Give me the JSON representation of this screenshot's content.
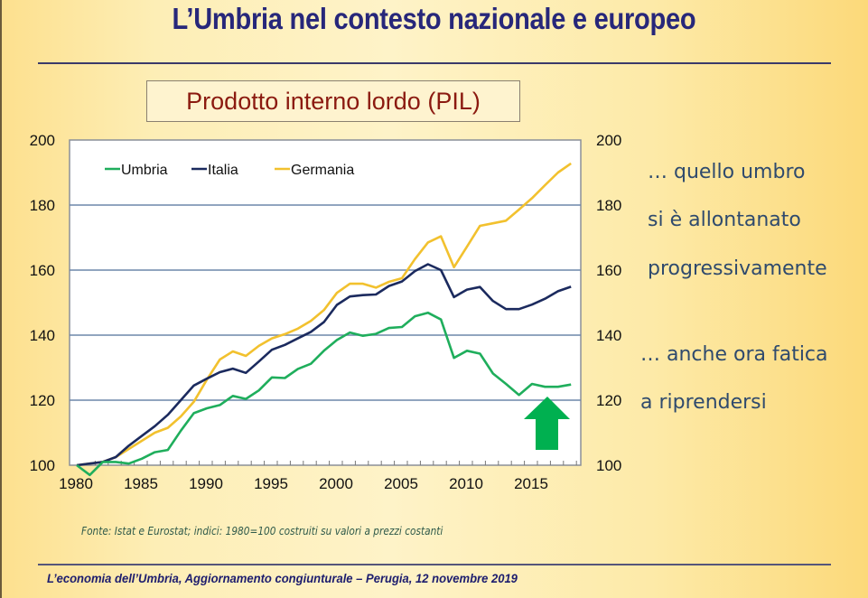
{
  "slide": {
    "title": "L’Umbria nel contesto nazionale e europeo",
    "subtitle_box": "Prodotto interno lordo (PIL)",
    "notes": [
      "… quello umbro",
      "si è allontanato",
      "progressivamente",
      "… anche ora fatica",
      "a riprendersi"
    ],
    "source": "Fonte: Istat e Eurostat; indici: 1980=100 costruiti su valori a prezzi costanti",
    "footer": "L’economia dell’Umbria, Aggiornamento congiunturale – Perugia, 12 novembre 2019",
    "arrow_icon": "up-arrow-icon",
    "arrow_color": "#00b050"
  },
  "chart_data": {
    "type": "line",
    "title": "Prodotto interno lordo (PIL)",
    "xlabel": "",
    "ylabel": "",
    "x": [
      1980,
      1981,
      1982,
      1983,
      1984,
      1985,
      1986,
      1987,
      1988,
      1989,
      1990,
      1991,
      1992,
      1993,
      1994,
      1995,
      1996,
      1997,
      1998,
      1999,
      2000,
      2001,
      2002,
      2003,
      2004,
      2005,
      2006,
      2007,
      2008,
      2009,
      2010,
      2011,
      2012,
      2013,
      2014,
      2015,
      2016,
      2017,
      2018
    ],
    "xlim": [
      1980,
      2018.5
    ],
    "ylim": [
      100,
      200
    ],
    "x_ticks": [
      "1980",
      "1985",
      "1990",
      "1995",
      "2000",
      "2005",
      "2010",
      "2015"
    ],
    "y_ticks": [
      "100",
      "120",
      "140",
      "160",
      "180",
      "200"
    ],
    "y_ticks_right": [
      "100",
      "120",
      "140",
      "160",
      "180",
      "200"
    ],
    "grid": "horizontal",
    "legend_position": "top-left",
    "series": [
      {
        "name": "Umbria",
        "color": "#1fae5c",
        "values": [
          100,
          97,
          101,
          101,
          100.5,
          102,
          104,
          104.7,
          110.6,
          116,
          117.5,
          118.5,
          121.3,
          120.4,
          123,
          127,
          126.8,
          129.6,
          131.2,
          135.2,
          138.5,
          140.8,
          139.8,
          140.4,
          142.2,
          142.5,
          145.8,
          146.9,
          144.8,
          133,
          135.2,
          134.3,
          128.2,
          125,
          121.6,
          125,
          124.1,
          124.1,
          124.8
        ]
      },
      {
        "name": "Italia",
        "color": "#1b2a5e",
        "values": [
          100,
          100.5,
          101,
          102.5,
          106,
          109,
          112,
          115.5,
          120,
          124.5,
          126.6,
          128.6,
          129.7,
          128.4,
          131.9,
          135.5,
          137,
          139,
          141,
          144,
          149.3,
          151.9,
          152.3,
          152.5,
          155.1,
          156.5,
          159.7,
          161.8,
          160,
          151.7,
          154,
          154.8,
          150.5,
          148,
          148,
          149.4,
          151.2,
          153.5,
          154.9
        ]
      },
      {
        "name": "Germania",
        "color": "#f2c12e",
        "values": [
          100,
          100.5,
          101,
          102.5,
          105,
          107.5,
          110,
          111.5,
          115,
          119.5,
          126.3,
          132.5,
          135,
          133.6,
          136.7,
          139,
          140.3,
          142,
          144.4,
          147.7,
          153,
          155.8,
          155.8,
          154.6,
          156.4,
          157.5,
          163.4,
          168.5,
          170.4,
          160.9,
          167.2,
          173.6,
          174.4,
          175.2,
          178.6,
          182.1,
          186.1,
          190,
          192.8
        ]
      }
    ]
  }
}
